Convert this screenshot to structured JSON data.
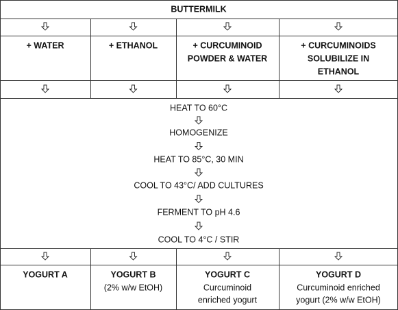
{
  "header": {
    "title": "BUTTERMILK"
  },
  "treatments": [
    [
      "+ WATER"
    ],
    [
      "+ ETHANOL"
    ],
    [
      "+ CURCUMINOID",
      "POWDER & WATER"
    ],
    [
      "+ CURCUMINOIDS",
      "SOLUBILIZE IN",
      "ETHANOL"
    ]
  ],
  "steps": [
    "HEAT TO 60°C",
    "HOMOGENIZE",
    "HEAT TO 85°C, 30 MIN",
    "COOL TO 43°C/ ADD CULTURES",
    "FERMENT TO pH 4.6",
    "COOL TO 4°C / STIR"
  ],
  "yogurts": [
    {
      "name": "YOGURT A"
    },
    {
      "name": "YOGURT B",
      "lines": [
        "(2% w/w EtOH)"
      ]
    },
    {
      "name": "YOGURT C",
      "lines": [
        "Curcuminoid",
        "enriched yogurt"
      ]
    },
    {
      "name": "YOGURT D",
      "lines": [
        "Curcuminoid enriched",
        "yogurt (2% w/w EtOH)"
      ]
    }
  ]
}
